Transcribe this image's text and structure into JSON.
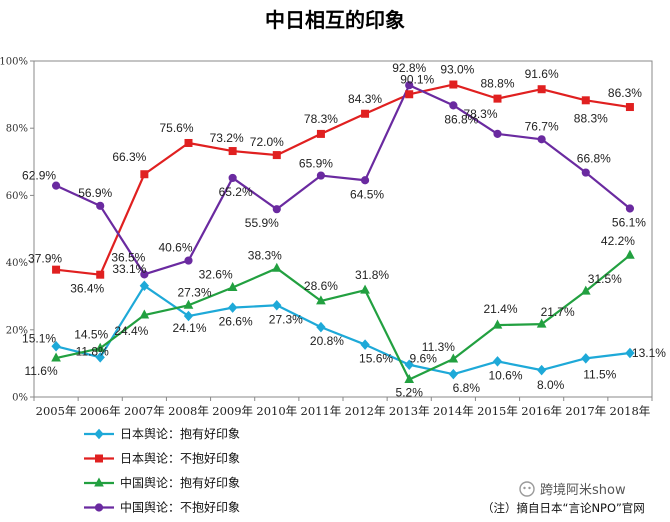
{
  "chart_data": {
    "type": "line",
    "title": "中日相互的印象",
    "categories": [
      "2005年",
      "2006年",
      "2007年",
      "2008年",
      "2009年",
      "2010年",
      "2011年",
      "2012年",
      "2013年",
      "2014年",
      "2015年",
      "2016年",
      "2017年",
      "2018年"
    ],
    "y_ticks": [
      "0%",
      "20%",
      "40%",
      "60%",
      "80%",
      "100%"
    ],
    "ylim": [
      0,
      100
    ],
    "grid": false,
    "legend_position": "bottom-left",
    "series": [
      {
        "name": "日本舆论：抱有好印象",
        "color": "#1ea9d8",
        "marker": "diamond",
        "values": [
          15.1,
          11.8,
          33.1,
          24.1,
          26.6,
          27.3,
          20.8,
          15.6,
          9.6,
          6.8,
          10.6,
          8.0,
          11.5,
          13.1
        ],
        "labels": [
          "15.1%",
          "11.8%",
          "33.1%",
          "24.1%",
          "26.6%",
          "27.3%",
          "20.8%",
          "15.6%",
          "9.6%",
          "6.8%",
          "10.6%",
          "8.0%",
          "11.5%",
          "13.1%"
        ]
      },
      {
        "name": "日本舆论：不抱好印象",
        "color": "#e02020",
        "marker": "square",
        "values": [
          37.9,
          36.4,
          66.3,
          75.6,
          73.2,
          72.0,
          78.3,
          84.3,
          90.1,
          93.0,
          88.8,
          91.6,
          88.3,
          86.3
        ],
        "labels": [
          "37.9%",
          "36.4%",
          "66.3%",
          "75.6%",
          "73.2%",
          "72.0%",
          "78.3%",
          "84.3%",
          "90.1%",
          "93.0%",
          "88.8%",
          "91.6%",
          "88.3%",
          "86.3%"
        ]
      },
      {
        "name": "中国舆论：抱有好印象",
        "color": "#22a040",
        "marker": "triangle",
        "values": [
          11.6,
          14.5,
          24.4,
          27.3,
          32.6,
          38.3,
          28.6,
          31.8,
          5.2,
          11.3,
          21.4,
          21.7,
          31.5,
          42.2
        ],
        "labels": [
          "11.6%",
          "14.5%",
          "24.4%",
          "27.3%",
          "32.6%",
          "38.3%",
          "28.6%",
          "31.8%",
          "5.2%",
          "11.3%",
          "21.4%",
          "21.7%",
          "31.5%",
          "42.2%"
        ]
      },
      {
        "name": "中国舆论：不抱好印象",
        "color": "#6a2aa0",
        "marker": "circle",
        "values": [
          62.9,
          56.9,
          36.5,
          40.6,
          65.2,
          55.9,
          65.9,
          64.5,
          92.8,
          86.8,
          78.3,
          76.7,
          66.8,
          56.1
        ],
        "labels": [
          "62.9%",
          "56.9%",
          "36.5%",
          "40.6%",
          "65.2%",
          "55.9%",
          "65.9%",
          "64.5%",
          "92.8%",
          "86.8%",
          "78.3%",
          "76.7%",
          "66.8%",
          "56.1%"
        ]
      }
    ]
  },
  "footnote": "（注）摘自日本“言论NPO”官网",
  "watermark": "跨境阿米show"
}
